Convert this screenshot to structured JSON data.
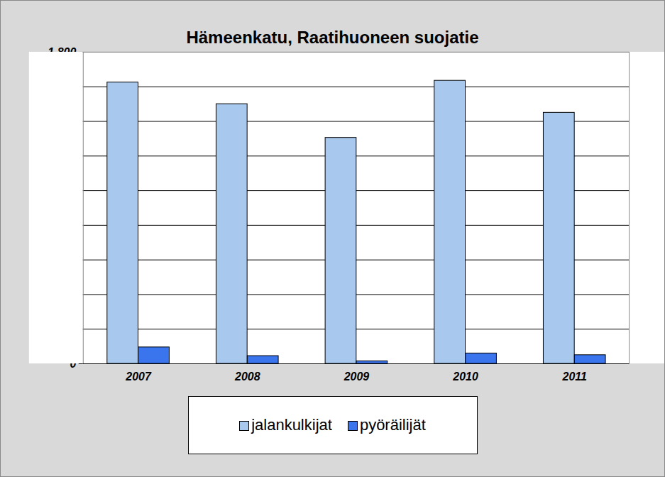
{
  "chart_data": {
    "type": "bar",
    "title": "Hämeenkatu, Raatihuoneen suojatie",
    "categories": [
      "2007",
      "2008",
      "2009",
      "2010",
      "2011"
    ],
    "series": [
      {
        "name": "jalankulkijat",
        "color": "#a9c8ee",
        "values": [
          1625,
          1500,
          1305,
          1635,
          1450
        ]
      },
      {
        "name": "pyöräilijät",
        "color": "#3a75ee",
        "values": [
          95,
          45,
          15,
          60,
          50
        ]
      }
    ],
    "ylim": [
      0,
      1800
    ],
    "yticks": [
      0,
      200,
      400,
      600,
      800,
      1000,
      1200,
      1400,
      1600,
      1800
    ],
    "grid": true,
    "legend": "bottom"
  }
}
